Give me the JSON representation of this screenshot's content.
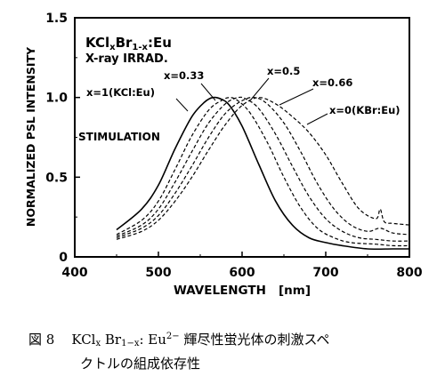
{
  "chart_data": {
    "type": "line",
    "title_line1": "KCl",
    "title_line1_sub": "x",
    "title_line1_mid": "Br",
    "title_line1_sub2": "1-x",
    "title_line1_end": ":Eu",
    "title_line2": "X-ray IRRAD.",
    "annotation": "STIMULATION",
    "xlabel": "WAVELENGTH   [nm]",
    "ylabel": "NORMALIZED PSL INTENSITY",
    "xlim": [
      400,
      800
    ],
    "ylim": [
      0,
      1.5
    ],
    "xticks": [
      "400",
      "500",
      "600",
      "700",
      "800"
    ],
    "yticks": [
      "0",
      "0.5",
      "1.0",
      "1.5"
    ],
    "grid": false,
    "series": [
      {
        "name": "x=1(KCl:Eu)",
        "style": "solid",
        "x": [
          450,
          480,
          500,
          520,
          540,
          555,
          565,
          575,
          585,
          600,
          620,
          640,
          660,
          680,
          700,
          720,
          750,
          780,
          800
        ],
        "y": [
          0.17,
          0.3,
          0.45,
          0.68,
          0.88,
          0.97,
          1.0,
          0.99,
          0.95,
          0.82,
          0.58,
          0.35,
          0.2,
          0.12,
          0.09,
          0.07,
          0.05,
          0.05,
          0.05
        ]
      },
      {
        "name": "x=0.33",
        "style": "dashed",
        "x": [
          450,
          480,
          500,
          520,
          540,
          560,
          575,
          585,
          595,
          610,
          630,
          650,
          670,
          690,
          710,
          730,
          760,
          780,
          800
        ],
        "y": [
          0.14,
          0.23,
          0.35,
          0.55,
          0.76,
          0.92,
          0.98,
          1.0,
          0.98,
          0.9,
          0.72,
          0.5,
          0.31,
          0.18,
          0.12,
          0.09,
          0.08,
          0.07,
          0.07
        ]
      },
      {
        "name": "x=0.5",
        "style": "dashed",
        "x": [
          450,
          480,
          500,
          520,
          540,
          560,
          580,
          595,
          605,
          620,
          640,
          660,
          680,
          700,
          720,
          740,
          760,
          780,
          800
        ],
        "y": [
          0.13,
          0.2,
          0.3,
          0.47,
          0.66,
          0.84,
          0.96,
          1.0,
          0.99,
          0.93,
          0.77,
          0.57,
          0.38,
          0.24,
          0.16,
          0.12,
          0.11,
          0.1,
          0.1
        ]
      },
      {
        "name": "x=0.66",
        "style": "dashed",
        "x": [
          450,
          480,
          500,
          520,
          540,
          560,
          580,
          600,
          615,
          630,
          650,
          670,
          690,
          710,
          730,
          750,
          765,
          780,
          800
        ],
        "y": [
          0.12,
          0.18,
          0.26,
          0.4,
          0.57,
          0.75,
          0.9,
          0.98,
          1.0,
          0.96,
          0.84,
          0.66,
          0.46,
          0.3,
          0.2,
          0.16,
          0.18,
          0.15,
          0.14
        ]
      },
      {
        "name": "x=0(KBr:Eu)",
        "style": "dashed",
        "x": [
          450,
          480,
          500,
          520,
          540,
          560,
          580,
          600,
          620,
          640,
          660,
          680,
          700,
          720,
          740,
          760,
          765,
          770,
          780,
          800
        ],
        "y": [
          0.11,
          0.16,
          0.23,
          0.35,
          0.5,
          0.67,
          0.83,
          0.95,
          1.0,
          0.96,
          0.88,
          0.78,
          0.64,
          0.46,
          0.3,
          0.24,
          0.3,
          0.22,
          0.21,
          0.2
        ]
      }
    ]
  },
  "caption": {
    "fig_label": "図 8",
    "formula_a": "KCl",
    "formula_a_sub": "x",
    "formula_b": "Br",
    "formula_b_sub": "1−x",
    "formula_c": ": Eu",
    "formula_c_sup": "2−",
    "text_line1_rest": " 輝尽性蛍光体の刺激スペ",
    "text_line2": "クトルの組成依存性"
  }
}
